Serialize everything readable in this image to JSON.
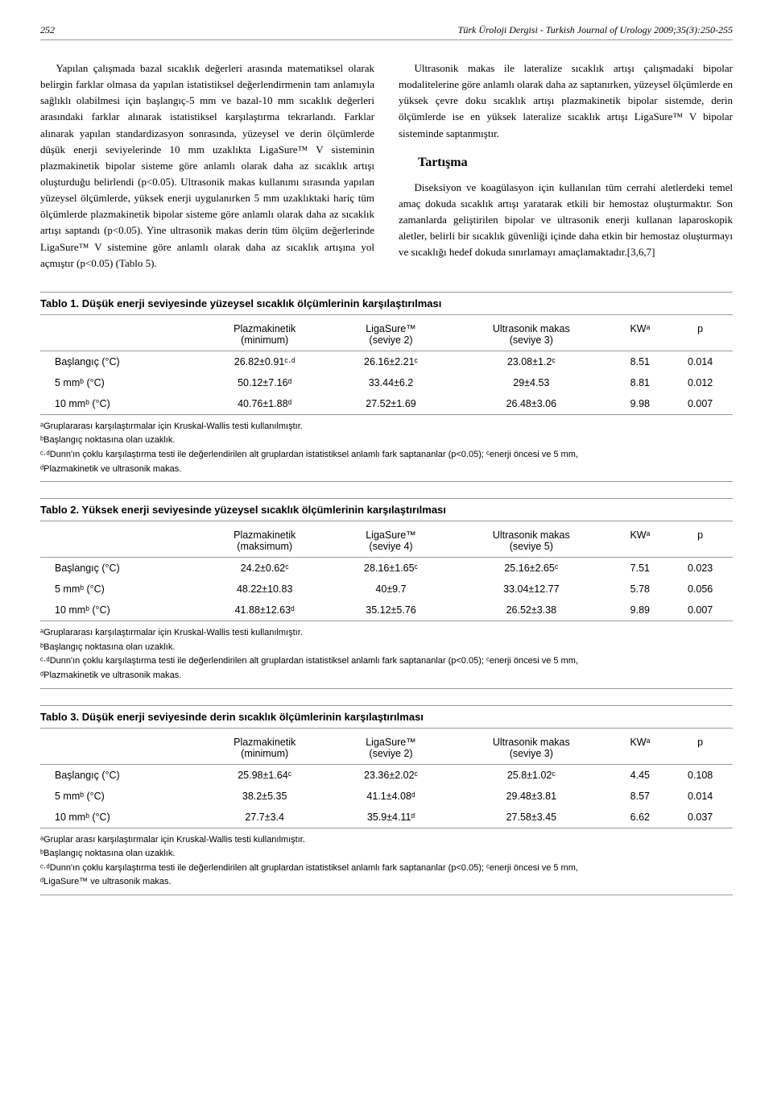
{
  "header": {
    "page": "252",
    "journal": "Türk Üroloji Dergisi - Turkish Journal of Urology 2009;35(3):250-255"
  },
  "left": {
    "p1": "Yapılan çalışmada bazal sıcaklık değerleri arasında matematiksel olarak belirgin farklar olmasa da yapılan istatistiksel değerlendirmenin tam anlamıyla sağlıklı olabilmesi için başlangıç-5 mm ve bazal-10 mm sıcaklık değerleri arasındaki farklar alınarak istatistiksel karşılaştırma tekrarlandı. Farklar alınarak yapılan standardizasyon sonrasında, yüzeysel ve derin ölçümlerde düşük enerji seviyelerinde 10 mm uzaklıkta LigaSure™ V sisteminin plazmakinetik bipolar sisteme göre anlamlı olarak daha az sıcaklık artışı oluşturduğu belirlendi (p<0.05). Ultrasonik makas kullanımı sırasında yapılan yüzeysel ölçümlerde, yüksek enerji uygulanırken 5 mm uzaklıktaki hariç tüm ölçümlerde plazmakinetik bipolar sisteme göre anlamlı olarak daha az sıcaklık artışı saptandı (p<0.05). Yine ultrasonik makas derin tüm ölçüm değerlerinde LigaSure™ V sistemine göre anlamlı olarak daha az sıcaklık artışına yol açmıştır (p<0.05) (Tablo 5)."
  },
  "right": {
    "p1": "Ultrasonik makas ile lateralize sıcaklık artışı çalışmadaki bipolar modalitelerine göre anlamlı olarak daha az saptanırken, yüzeysel ölçümlerde en yüksek çevre doku sıcaklık artışı plazmakinetik bipolar sistemde, derin ölçümlerde ise en yüksek lateralize sıcaklık artışı LigaSure™ V bipolar sisteminde saptanmıştır.",
    "heading": "Tartışma",
    "p2": "Diseksiyon ve koagülasyon için kullanılan tüm cerrahi aletlerdeki temel amaç dokuda sıcaklık artışı yaratarak etkili bir hemostaz oluşturmaktır. Son zamanlarda geliştirilen bipolar ve ultrasonik enerji kullanan laparoskopik aletler, belirli bir sıcaklık güvenliği içinde daha etkin bir hemostaz oluşturmayı ve sıcaklığı hedef dokuda sınırlamayı amaçlamaktadır.[3,6,7]"
  },
  "t1": {
    "title": "Tablo 1. Düşük enerji seviyesinde yüzeysel sıcaklık ölçümlerinin karşılaştırılması",
    "h1": "Plazmakinetik",
    "h1s": "(minimum)",
    "h2": "LigaSure™",
    "h2s": "(seviye 2)",
    "h3": "Ultrasonik makas",
    "h3s": "(seviye 3)",
    "h4": "KWᵃ",
    "h5": "p",
    "r1c0": "Başlangıç (°C)",
    "r1c1": "26.82±0.91ᶜ·ᵈ",
    "r1c2": "26.16±2.21ᶜ",
    "r1c3": "23.08±1.2ᶜ",
    "r1c4": "8.51",
    "r1c5": "0.014",
    "r2c0": "5 mmᵇ (°C)",
    "r2c1": "50.12±7.16ᵈ",
    "r2c2": "33.44±6.2",
    "r2c3": "29±4.53",
    "r2c4": "8.81",
    "r2c5": "0.012",
    "r3c0": "10 mmᵇ (°C)",
    "r3c1": "40.76±1.88ᵈ",
    "r3c2": "27.52±1.69",
    "r3c3": "26.48±3.06",
    "r3c4": "9.98",
    "r3c5": "0.007",
    "f1": "ᵃGruplararası karşılaştırmalar için Kruskal-Wallis testi kullanılmıştır.",
    "f2": "ᵇBaşlangıç noktasına olan uzaklık.",
    "f3": "ᶜ·ᵈDunn'ın çoklu karşılaştırma testi ile değerlendirilen alt gruplardan istatistiksel anlamlı fark saptananlar (p<0.05); ᶜenerji öncesi ve 5 mm,",
    "f4": "ᵈPlazmakinetik ve ultrasonik makas."
  },
  "t2": {
    "title": "Tablo 2. Yüksek enerji seviyesinde yüzeysel sıcaklık ölçümlerinin karşılaştırılması",
    "h1": "Plazmakinetik",
    "h1s": "(maksimum)",
    "h2": "LigaSure™",
    "h2s": "(seviye 4)",
    "h3": "Ultrasonik makas",
    "h3s": "(seviye 5)",
    "h4": "KWᵃ",
    "h5": "p",
    "r1c0": "Başlangıç (°C)",
    "r1c1": "24.2±0.62ᶜ",
    "r1c2": "28.16±1.65ᶜ",
    "r1c3": "25.16±2.65ᶜ",
    "r1c4": "7.51",
    "r1c5": "0.023",
    "r2c0": "5 mmᵇ (°C)",
    "r2c1": "48.22±10.83",
    "r2c2": "40±9.7",
    "r2c3": "33.04±12.77",
    "r2c4": "5.78",
    "r2c5": "0.056",
    "r3c0": "10 mmᵇ (°C)",
    "r3c1": "41.88±12.63ᵈ",
    "r3c2": "35.12±5.76",
    "r3c3": "26.52±3.38",
    "r3c4": "9.89",
    "r3c5": "0.007",
    "f1": "ᵃGruplararası karşılaştırmalar için Kruskal-Wallis testi kullanılmıştır.",
    "f2": "ᵇBaşlangıç noktasına olan uzaklık.",
    "f3": "ᶜ·ᵈDunn'ın çoklu karşılaştırma testi ile değerlendirilen alt gruplardan istatistiksel anlamlı fark saptananlar (p<0.05); ᶜenerji öncesi ve 5 mm,",
    "f4": "ᵈPlazmakinetik ve ultrasonik makas."
  },
  "t3": {
    "title": "Tablo 3. Düşük enerji seviyesinde derin sıcaklık ölçümlerinin karşılaştırılması",
    "h1": "Plazmakinetik",
    "h1s": "(minimum)",
    "h2": "LigaSure™",
    "h2s": "(seviye 2)",
    "h3": "Ultrasonik makas",
    "h3s": "(seviye 3)",
    "h4": "KWᵃ",
    "h5": "p",
    "r1c0": "Başlangıç (°C)",
    "r1c1": "25.98±1.64ᶜ",
    "r1c2": "23.36±2.02ᶜ",
    "r1c3": "25.8±1.02ᶜ",
    "r1c4": "4.45",
    "r1c5": "0.108",
    "r2c0": "5 mmᵇ (°C)",
    "r2c1": "38.2±5.35",
    "r2c2": "41.1±4.08ᵈ",
    "r2c3": "29.48±3.81",
    "r2c4": "8.57",
    "r2c5": "0.014",
    "r3c0": "10 mmᵇ (°C)",
    "r3c1": "27.7±3.4",
    "r3c2": "35.9±4.11ᵈ",
    "r3c3": "27.58±3.45",
    "r3c4": "6.62",
    "r3c5": "0.037",
    "f1": "ᵃGruplar arası karşılaştırmalar için Kruskal-Wallis testi kullanılmıştır.",
    "f2": "ᵇBaşlangıç noktasına olan uzaklık.",
    "f3": "ᶜ·ᵈDunn'ın çoklu karşılaştırma testi ile değerlendirilen alt gruplardan istatistiksel anlamlı fark saptananlar (p<0.05); ᶜenerji öncesi ve 5 mm,",
    "f4": "ᵈLigaSure™ ve ultrasonik makas."
  }
}
